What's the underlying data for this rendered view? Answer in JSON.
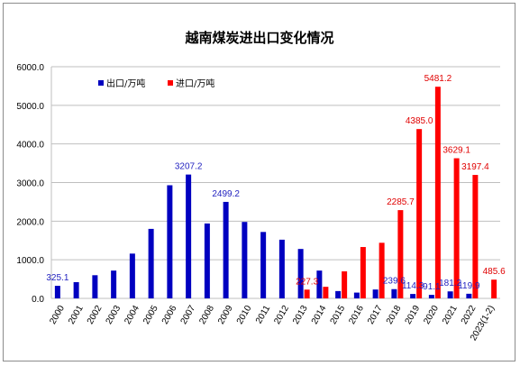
{
  "chart_data": {
    "type": "bar",
    "title": "越南煤炭进出口变化情况",
    "ylim": [
      0,
      6000
    ],
    "yticks": [
      "0.0",
      "1000.0",
      "2000.0",
      "3000.0",
      "4000.0",
      "5000.0",
      "6000.0"
    ],
    "grid": true,
    "legend_position": "top-left",
    "categories": [
      "2000",
      "2001",
      "2002",
      "2003",
      "2004",
      "2005",
      "2006",
      "2007",
      "2008",
      "2009",
      "2010",
      "2011",
      "2012",
      "2013",
      "2014",
      "2015",
      "2016",
      "2017",
      "2018",
      "2019",
      "2020",
      "2021",
      "2022",
      "2023(1-2)"
    ],
    "series": [
      {
        "name": "出口/万吨",
        "color": "#0000c0",
        "values": [
          325.1,
          420,
          600,
          720,
          1160,
          1800,
          2930,
          3207.2,
          1940,
          2499.2,
          1980,
          1720,
          1520,
          1280,
          720,
          190,
          150,
          230,
          239.6,
          114.3,
          91.1,
          181.2,
          119.9,
          null
        ],
        "labels": [
          "325.1",
          "",
          "",
          "",
          "",
          "",
          "",
          "3207.2",
          "",
          "2499.2",
          "",
          "",
          "",
          "",
          "",
          "",
          "",
          "",
          "239.6",
          "114.3",
          "91.1",
          "181.2",
          "119.9",
          ""
        ]
      },
      {
        "name": "进口/万吨",
        "color": "#ff0000",
        "values": [
          null,
          null,
          null,
          null,
          null,
          null,
          null,
          null,
          null,
          null,
          null,
          null,
          null,
          227.3,
          300,
          700,
          1330,
          1440,
          2285.7,
          4385.0,
          5481.2,
          3629.1,
          3197.4,
          485.6
        ],
        "labels": [
          "",
          "",
          "",
          "",
          "",
          "",
          "",
          "",
          "",
          "",
          "",
          "",
          "",
          "227.3",
          "",
          "",
          "",
          "",
          "2285.7",
          "4385.0",
          "5481.2",
          "3629.1",
          "3197.4",
          "485.6"
        ]
      }
    ]
  }
}
